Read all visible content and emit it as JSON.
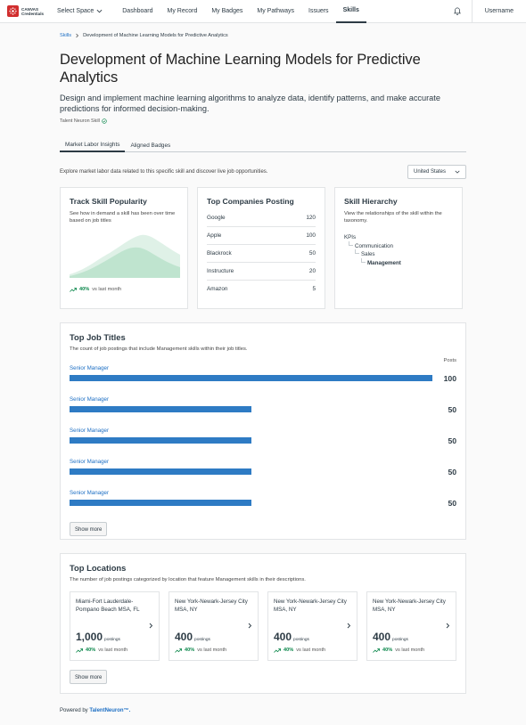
{
  "brand": {
    "line1": "CANVAS",
    "line2": "Credentials"
  },
  "nav": {
    "select_space": "Select Space",
    "links": [
      "Dashboard",
      "My Record",
      "My Badges",
      "My Pathways",
      "Issuers",
      "Skills"
    ],
    "active": "Skills",
    "username": "Username"
  },
  "breadcrumb": {
    "root": "Skills",
    "current": "Development of Machine Learning Models for Predictive Analytics"
  },
  "title": "Development of Machine Learning Models for Predictive Analytics",
  "description": "Design and implement machine learning algorithms to analyze data, identify patterns, and make accurate predictions for informed decision-making.",
  "source_label": "Talent Neuron Skill",
  "tabs": [
    "Market Labor Insights",
    "Aligned Badges"
  ],
  "explore_text": "Explore market labor data related to this specific skill and discover live job opportunities.",
  "country": "United States",
  "popularity": {
    "title": "Track Skill Popularity",
    "subtitle": "See how in demand a skill has been over time based on job titles",
    "trend_pct": "40%",
    "trend_vs": "vs last month"
  },
  "companies": {
    "title": "Top Companies Posting",
    "rows": [
      {
        "name": "Google",
        "count": "120"
      },
      {
        "name": "Apple",
        "count": "100"
      },
      {
        "name": "Blackrock",
        "count": "50"
      },
      {
        "name": "Instructure",
        "count": "20"
      },
      {
        "name": "Amazon",
        "count": "5"
      }
    ]
  },
  "hierarchy": {
    "title": "Skill Hierarchy",
    "subtitle": "View the relationships of the skill within the taxonomy.",
    "levels": [
      "KPIs",
      "Communication",
      "Sales",
      "Management"
    ]
  },
  "job_titles": {
    "title": "Top Job Titles",
    "subtitle": "The count of job postings that include Management skills within their job titles.",
    "posts_label": "Posts",
    "max": 100,
    "rows": [
      {
        "title": "Senior Manager",
        "value": 100
      },
      {
        "title": "Senior Manager",
        "value": 50
      },
      {
        "title": "Senior Manager",
        "value": 50
      },
      {
        "title": "Senior Manager",
        "value": 50
      },
      {
        "title": "Senior Manager",
        "value": 50
      }
    ],
    "show_more": "Show more"
  },
  "locations": {
    "title": "Top Locations",
    "subtitle": "The number of job postings categorized by location that feature Management skills in their descriptions.",
    "postings_label": "postings",
    "rows": [
      {
        "name": "Miami-Fort Lauderdale-Pompano Beach MSA, FL",
        "count": "1,000",
        "trend_pct": "40%",
        "trend_vs": "vs last month"
      },
      {
        "name": "New York-Newark-Jersey City MSA, NY",
        "count": "400",
        "trend_pct": "40%",
        "trend_vs": "vs last month"
      },
      {
        "name": "New York-Newark-Jersey City MSA, NY",
        "count": "400",
        "trend_pct": "40%",
        "trend_vs": "vs last month"
      },
      {
        "name": "New York-Newark-Jersey City MSA, NY",
        "count": "400",
        "trend_pct": "40%",
        "trend_vs": "vs last month"
      }
    ],
    "show_more": "Show more"
  },
  "footer": {
    "prefix": "Powered by",
    "brand": "TalentNeuron™."
  },
  "colors": {
    "accent": "#1d6fc4",
    "bar": "#2e7bc4",
    "positive": "#0b874b",
    "brand": "#d12e2e"
  }
}
